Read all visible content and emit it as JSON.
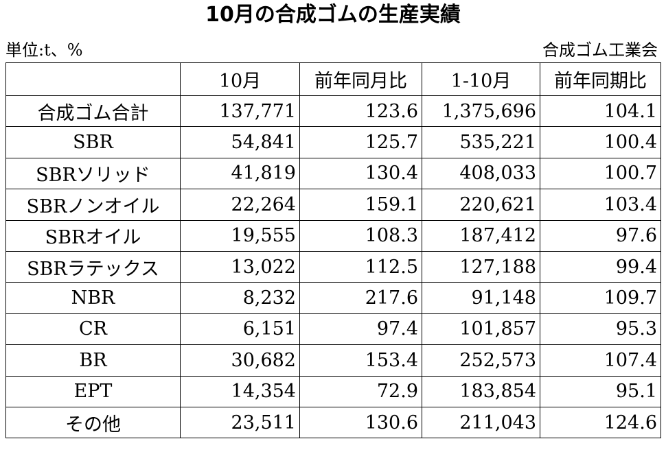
{
  "title": "10月の合成ゴムの生産実績",
  "unit_label": "単位:t、%",
  "source": "合成ゴム工業会",
  "table": {
    "headers": [
      "",
      "10月",
      "前年同月比",
      "1-10月",
      "前年同期比"
    ],
    "rows": [
      {
        "name": "合成ゴム合計",
        "oct": "137,771",
        "yoy_month": "123.6",
        "ytd": "1,375,696",
        "yoy_period": "104.1"
      },
      {
        "name": "SBR",
        "oct": "54,841",
        "yoy_month": "125.7",
        "ytd": "535,221",
        "yoy_period": "100.4"
      },
      {
        "name": "SBRソリッド",
        "oct": "41,819",
        "yoy_month": "130.4",
        "ytd": "408,033",
        "yoy_period": "100.7"
      },
      {
        "name": "SBRノンオイル",
        "oct": "22,264",
        "yoy_month": "159.1",
        "ytd": "220,621",
        "yoy_period": "103.4"
      },
      {
        "name": "SBRオイル",
        "oct": "19,555",
        "yoy_month": "108.3",
        "ytd": "187,412",
        "yoy_period": "97.6"
      },
      {
        "name": "SBRラテックス",
        "oct": "13,022",
        "yoy_month": "112.5",
        "ytd": "127,188",
        "yoy_period": "99.4"
      },
      {
        "name": "NBR",
        "oct": "8,232",
        "yoy_month": "217.6",
        "ytd": "91,148",
        "yoy_period": "109.7"
      },
      {
        "name": "CR",
        "oct": "6,151",
        "yoy_month": "97.4",
        "ytd": "101,857",
        "yoy_period": "95.3"
      },
      {
        "name": "BR",
        "oct": "30,682",
        "yoy_month": "153.4",
        "ytd": "252,573",
        "yoy_period": "107.4"
      },
      {
        "name": "EPT",
        "oct": "14,354",
        "yoy_month": "72.9",
        "ytd": "183,854",
        "yoy_period": "95.1"
      },
      {
        "name": "その他",
        "oct": "23,511",
        "yoy_month": "130.6",
        "ytd": "211,043",
        "yoy_period": "124.6"
      }
    ]
  }
}
